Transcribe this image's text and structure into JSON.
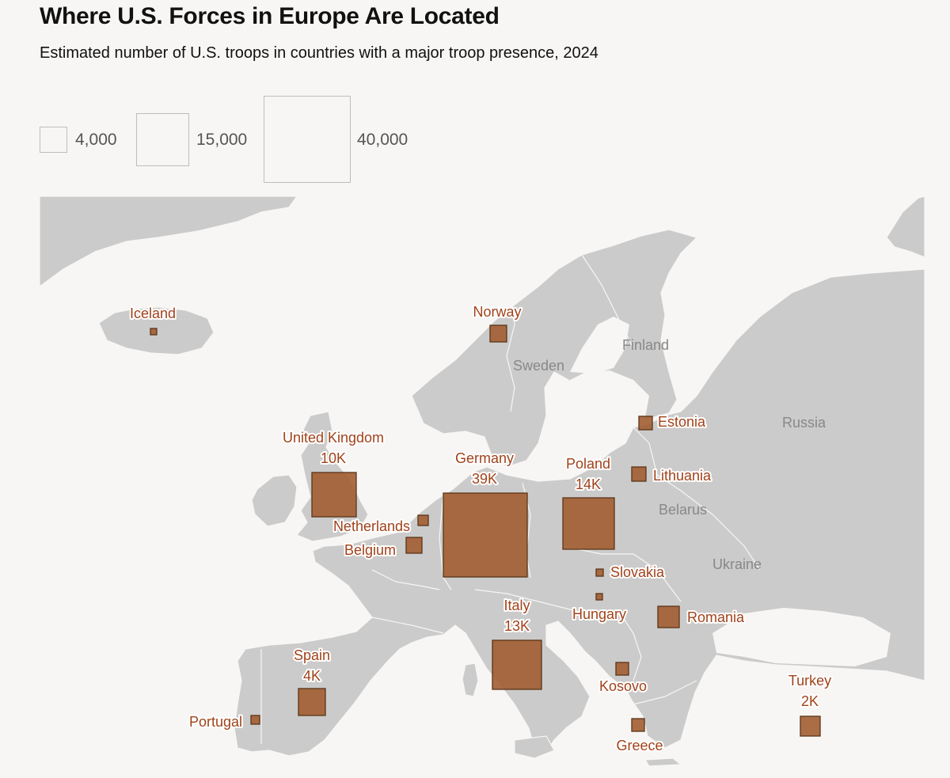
{
  "header": {
    "title": "Where U.S. Forces in Europe Are Located",
    "subtitle": "Estimated number of U.S. troops in countries with a major troop presence, 2024"
  },
  "legend": [
    {
      "label": "4,000",
      "value": 4000
    },
    {
      "label": "15,000",
      "value": 15000
    },
    {
      "label": "40,000",
      "value": 40000
    }
  ],
  "map_labels": [
    "Sweden",
    "Finland",
    "Russia",
    "Belarus",
    "Ukraine"
  ],
  "colors": {
    "background": "#f7f6f4",
    "land": "#cbcbcb",
    "marker_fill": "#a05a2c",
    "marker_stroke": "#5a3418",
    "label_text": "#a0421a"
  },
  "troops": [
    {
      "country": "Iceland",
      "value_label": ""
    },
    {
      "country": "Norway",
      "value_label": ""
    },
    {
      "country": "Estonia",
      "value_label": ""
    },
    {
      "country": "United Kingdom",
      "value_label": "10K"
    },
    {
      "country": "Germany",
      "value_label": "39K"
    },
    {
      "country": "Poland",
      "value_label": "14K"
    },
    {
      "country": "Lithuania",
      "value_label": ""
    },
    {
      "country": "Netherlands",
      "value_label": ""
    },
    {
      "country": "Belgium",
      "value_label": ""
    },
    {
      "country": "Slovakia",
      "value_label": ""
    },
    {
      "country": "Hungary",
      "value_label": ""
    },
    {
      "country": "Romania",
      "value_label": ""
    },
    {
      "country": "Italy",
      "value_label": "13K"
    },
    {
      "country": "Kosovo",
      "value_label": ""
    },
    {
      "country": "Spain",
      "value_label": "4K"
    },
    {
      "country": "Portugal",
      "value_label": ""
    },
    {
      "country": "Greece",
      "value_label": ""
    },
    {
      "country": "Turkey",
      "value_label": "2K"
    }
  ]
}
